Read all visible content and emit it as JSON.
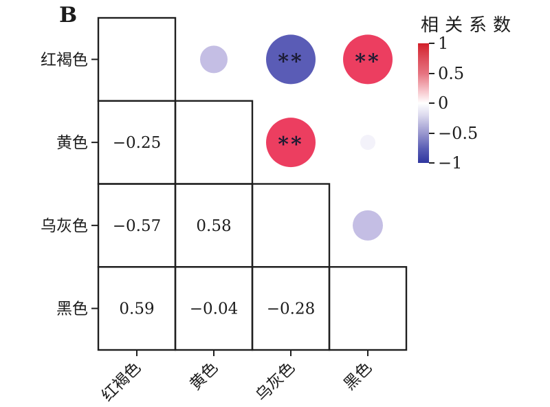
{
  "chart_data": {
    "type": "heatmap",
    "subtype": "correlogram-mixed",
    "panel_label": "B",
    "categories": [
      "红褐色",
      "黄色",
      "乌灰色",
      "黑色"
    ],
    "x_tick_rotation_deg": 45,
    "display": {
      "lower_triangle": "numbers",
      "upper_triangle": "circles",
      "significance_marker": "**",
      "circle_size_encodes": "abs(correlation)",
      "circle_color_encodes": "correlation"
    },
    "pairs": [
      {
        "a": "红褐色",
        "b": "黄色",
        "value": -0.25,
        "label": "−0.25",
        "significant": false,
        "circle_color": "#c4bee4",
        "circle_radius": 20
      },
      {
        "a": "红褐色",
        "b": "乌灰色",
        "value": -0.57,
        "label": "−0.57",
        "significant": true,
        "circle_color": "#5a5cb6",
        "circle_radius": 36
      },
      {
        "a": "红褐色",
        "b": "黑色",
        "value": 0.59,
        "label": "0.59",
        "significant": true,
        "circle_color": "#ec3e60",
        "circle_radius": 36
      },
      {
        "a": "黄色",
        "b": "乌灰色",
        "value": 0.58,
        "label": "0.58",
        "significant": true,
        "circle_color": "#ec3e60",
        "circle_radius": 36
      },
      {
        "a": "黄色",
        "b": "黑色",
        "value": -0.04,
        "label": "−0.04",
        "significant": false,
        "circle_color": "#f3f2fa",
        "circle_radius": 11
      },
      {
        "a": "乌灰色",
        "b": "黑色",
        "value": -0.28,
        "label": "−0.28",
        "significant": false,
        "circle_color": "#c4bee4",
        "circle_radius": 22
      }
    ],
    "legend": {
      "title": "相关系数",
      "range": [
        -1,
        1
      ],
      "ticks": [
        "1",
        "0.5",
        "0",
        "−0.5",
        "−1"
      ],
      "gradient": [
        {
          "pos": 0,
          "color": "#d2202a"
        },
        {
          "pos": 12,
          "color": "#dd4b58"
        },
        {
          "pos": 25,
          "color": "#e6737f"
        },
        {
          "pos": 40,
          "color": "#f7c6cc"
        },
        {
          "pos": 50,
          "color": "#ffffff"
        },
        {
          "pos": 60,
          "color": "#dcdaee"
        },
        {
          "pos": 75,
          "color": "#9a98cf"
        },
        {
          "pos": 88,
          "color": "#5a5eb5"
        },
        {
          "pos": 100,
          "color": "#2f36a0"
        }
      ]
    },
    "colors": {
      "grid": "#1f1f1f",
      "text": "#1c1c1c",
      "marker": "#1b1b32"
    }
  }
}
